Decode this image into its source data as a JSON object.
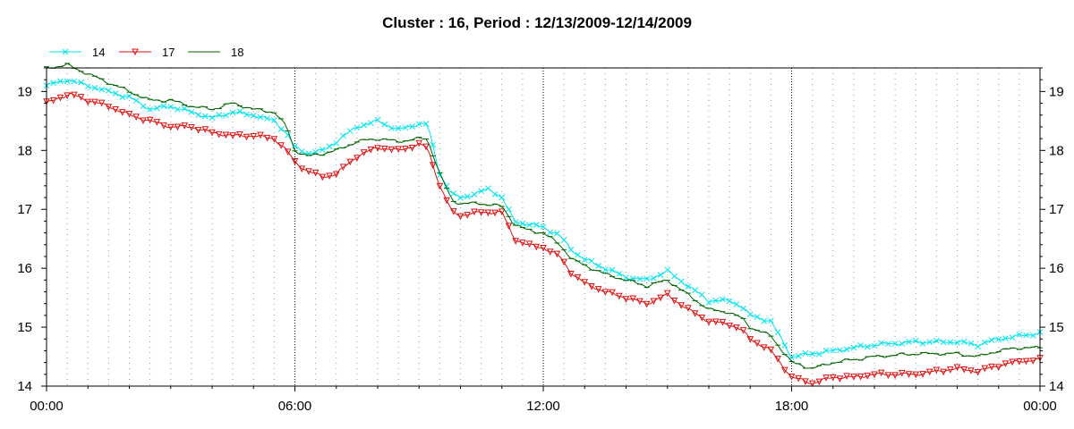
{
  "chart_data": {
    "type": "line",
    "title": "Cluster : 16, Period : 12/13/2009-12/14/2009",
    "xlabel": "",
    "ylabel": "",
    "x_unit": "hours",
    "xlim": [
      0,
      24
    ],
    "ylim": [
      14,
      19.4
    ],
    "x_ticks": [
      {
        "value": 0,
        "label": "00:00"
      },
      {
        "value": 6,
        "label": "06:00"
      },
      {
        "value": 12,
        "label": "12:00"
      },
      {
        "value": 18,
        "label": "18:00"
      },
      {
        "value": 24,
        "label": "00:00"
      }
    ],
    "y_ticks": [
      {
        "value": 14,
        "label": "14"
      },
      {
        "value": 15,
        "label": "15"
      },
      {
        "value": 16,
        "label": "16"
      },
      {
        "value": 17,
        "label": "17"
      },
      {
        "value": 18,
        "label": "18"
      },
      {
        "value": 19,
        "label": "19"
      }
    ],
    "grid": "dotted",
    "legend_position": "top-left",
    "series": [
      {
        "name": "14",
        "color": "#00e5ee",
        "marker": "x",
        "points": [
          [
            0,
            19.1
          ],
          [
            0.5,
            19.2
          ],
          [
            1,
            19.1
          ],
          [
            1.5,
            19.0
          ],
          [
            2,
            18.9
          ],
          [
            2.5,
            18.7
          ],
          [
            3,
            18.75
          ],
          [
            3.5,
            18.65
          ],
          [
            4,
            18.55
          ],
          [
            4.5,
            18.65
          ],
          [
            5,
            18.6
          ],
          [
            5.5,
            18.5
          ],
          [
            5.8,
            18.3
          ],
          [
            6,
            18.05
          ],
          [
            6.3,
            17.95
          ],
          [
            6.7,
            18.0
          ],
          [
            7,
            18.15
          ],
          [
            7.5,
            18.4
          ],
          [
            8,
            18.5
          ],
          [
            8.5,
            18.35
          ],
          [
            9,
            18.45
          ],
          [
            9.2,
            18.45
          ],
          [
            9.5,
            17.6
          ],
          [
            9.8,
            17.25
          ],
          [
            10,
            17.2
          ],
          [
            10.3,
            17.25
          ],
          [
            10.7,
            17.35
          ],
          [
            11,
            17.2
          ],
          [
            11.3,
            16.8
          ],
          [
            11.6,
            16.75
          ],
          [
            12,
            16.7
          ],
          [
            12.4,
            16.55
          ],
          [
            12.7,
            16.3
          ],
          [
            13,
            16.15
          ],
          [
            13.5,
            16.0
          ],
          [
            14,
            15.85
          ],
          [
            14.5,
            15.8
          ],
          [
            15,
            15.95
          ],
          [
            15.5,
            15.7
          ],
          [
            16,
            15.45
          ],
          [
            16.5,
            15.45
          ],
          [
            16.8,
            15.35
          ],
          [
            17,
            15.2
          ],
          [
            17.5,
            15.1
          ],
          [
            18,
            14.5
          ],
          [
            18.5,
            14.55
          ],
          [
            19,
            14.6
          ],
          [
            19.5,
            14.65
          ],
          [
            20,
            14.7
          ],
          [
            21,
            14.75
          ],
          [
            22,
            14.75
          ],
          [
            22.5,
            14.7
          ],
          [
            23,
            14.8
          ],
          [
            23.5,
            14.85
          ],
          [
            24,
            14.9
          ]
        ]
      },
      {
        "name": "17",
        "color": "#dd1111",
        "marker": "triangle-down",
        "points": [
          [
            0,
            18.8
          ],
          [
            0.3,
            18.9
          ],
          [
            0.6,
            18.95
          ],
          [
            1,
            18.85
          ],
          [
            1.5,
            18.75
          ],
          [
            2,
            18.6
          ],
          [
            2.5,
            18.5
          ],
          [
            3,
            18.4
          ],
          [
            3.5,
            18.4
          ],
          [
            4,
            18.3
          ],
          [
            4.5,
            18.25
          ],
          [
            5,
            18.25
          ],
          [
            5.5,
            18.2
          ],
          [
            5.8,
            18.0
          ],
          [
            6,
            17.8
          ],
          [
            6.3,
            17.65
          ],
          [
            6.7,
            17.55
          ],
          [
            7,
            17.6
          ],
          [
            7.5,
            17.9
          ],
          [
            8,
            18.05
          ],
          [
            8.5,
            18.0
          ],
          [
            9,
            18.1
          ],
          [
            9.2,
            18.05
          ],
          [
            9.5,
            17.4
          ],
          [
            9.8,
            16.95
          ],
          [
            10,
            16.9
          ],
          [
            10.5,
            16.95
          ],
          [
            11,
            16.95
          ],
          [
            11.3,
            16.5
          ],
          [
            11.6,
            16.4
          ],
          [
            12,
            16.35
          ],
          [
            12.4,
            16.2
          ],
          [
            12.7,
            15.9
          ],
          [
            13,
            15.75
          ],
          [
            13.5,
            15.6
          ],
          [
            14,
            15.5
          ],
          [
            14.5,
            15.4
          ],
          [
            15,
            15.55
          ],
          [
            15.5,
            15.3
          ],
          [
            16,
            15.1
          ],
          [
            16.5,
            15.05
          ],
          [
            16.8,
            14.95
          ],
          [
            17,
            14.8
          ],
          [
            17.5,
            14.6
          ],
          [
            18,
            14.15
          ],
          [
            18.5,
            14.05
          ],
          [
            19,
            14.15
          ],
          [
            19.5,
            14.15
          ],
          [
            20,
            14.2
          ],
          [
            21,
            14.2
          ],
          [
            22,
            14.3
          ],
          [
            22.5,
            14.25
          ],
          [
            23,
            14.35
          ],
          [
            23.5,
            14.42
          ],
          [
            24,
            14.45
          ]
        ]
      },
      {
        "name": "18",
        "color": "#006600",
        "marker": "dash",
        "points": [
          [
            0,
            19.4
          ],
          [
            0.5,
            19.45
          ],
          [
            1,
            19.3
          ],
          [
            1.5,
            19.15
          ],
          [
            2,
            19.0
          ],
          [
            2.5,
            18.85
          ],
          [
            3,
            18.85
          ],
          [
            3.5,
            18.75
          ],
          [
            4,
            18.7
          ],
          [
            4.5,
            18.8
          ],
          [
            5,
            18.7
          ],
          [
            5.5,
            18.65
          ],
          [
            5.8,
            18.4
          ],
          [
            6,
            18.0
          ],
          [
            6.3,
            17.9
          ],
          [
            6.7,
            17.95
          ],
          [
            7,
            18.0
          ],
          [
            7.5,
            18.15
          ],
          [
            8,
            18.2
          ],
          [
            8.5,
            18.15
          ],
          [
            9,
            18.2
          ],
          [
            9.2,
            18.2
          ],
          [
            9.5,
            17.6
          ],
          [
            9.8,
            17.15
          ],
          [
            10,
            17.1
          ],
          [
            10.5,
            17.1
          ],
          [
            11,
            17.05
          ],
          [
            11.3,
            16.75
          ],
          [
            11.6,
            16.65
          ],
          [
            12,
            16.6
          ],
          [
            12.4,
            16.4
          ],
          [
            12.7,
            16.15
          ],
          [
            13,
            16.05
          ],
          [
            13.5,
            15.9
          ],
          [
            14,
            15.8
          ],
          [
            14.5,
            15.7
          ],
          [
            15,
            15.8
          ],
          [
            15.5,
            15.55
          ],
          [
            16,
            15.3
          ],
          [
            16.5,
            15.25
          ],
          [
            16.8,
            15.15
          ],
          [
            17,
            15.0
          ],
          [
            17.5,
            14.85
          ],
          [
            18,
            14.4
          ],
          [
            18.5,
            14.3
          ],
          [
            19,
            14.4
          ],
          [
            19.5,
            14.45
          ],
          [
            20,
            14.5
          ],
          [
            21,
            14.55
          ],
          [
            22,
            14.55
          ],
          [
            22.5,
            14.5
          ],
          [
            23,
            14.6
          ],
          [
            23.5,
            14.65
          ],
          [
            24,
            14.65
          ]
        ]
      }
    ]
  }
}
